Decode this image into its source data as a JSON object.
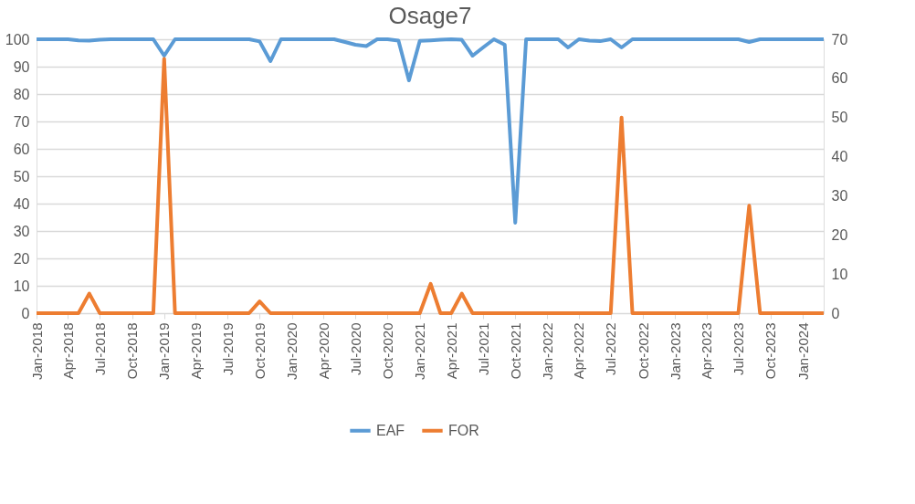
{
  "chart_data": {
    "type": "line",
    "title": "Osage7",
    "x": [
      "2018-01",
      "2018-02",
      "2018-03",
      "2018-04",
      "2018-05",
      "2018-06",
      "2018-07",
      "2018-08",
      "2018-09",
      "2018-10",
      "2018-11",
      "2018-12",
      "2019-01",
      "2019-02",
      "2019-03",
      "2019-04",
      "2019-05",
      "2019-06",
      "2019-07",
      "2019-08",
      "2019-09",
      "2019-10",
      "2019-11",
      "2019-12",
      "2020-01",
      "2020-02",
      "2020-03",
      "2020-04",
      "2020-05",
      "2020-06",
      "2020-07",
      "2020-08",
      "2020-09",
      "2020-10",
      "2020-11",
      "2020-12",
      "2021-01",
      "2021-02",
      "2021-03",
      "2021-04",
      "2021-05",
      "2021-06",
      "2021-07",
      "2021-08",
      "2021-09",
      "2021-10",
      "2021-11",
      "2021-12",
      "2022-01",
      "2022-02",
      "2022-03",
      "2022-04",
      "2022-05",
      "2022-06",
      "2022-07",
      "2022-08",
      "2022-09",
      "2022-10",
      "2022-11",
      "2022-12",
      "2023-01",
      "2023-02",
      "2023-03",
      "2023-04",
      "2023-05",
      "2023-06",
      "2023-07",
      "2023-08",
      "2023-09",
      "2023-10",
      "2023-11",
      "2023-12",
      "2024-01",
      "2024-02",
      "2024-03"
    ],
    "series": [
      {
        "name": "EAF",
        "color": "#5b9bd5",
        "values": [
          100,
          100,
          100,
          100,
          99.6,
          99.5,
          99.8,
          100,
          100,
          100,
          100,
          100,
          94,
          100,
          100,
          100,
          100,
          100,
          100,
          100,
          100,
          99.2,
          92,
          100,
          100,
          100,
          100,
          100,
          100,
          99,
          98,
          97.5,
          100,
          100,
          99.5,
          85,
          99.4,
          99.6,
          99.8,
          100,
          99.8,
          94,
          97,
          100,
          98,
          33,
          100,
          100,
          100,
          100,
          97,
          100,
          99.5,
          99.3,
          100,
          97,
          100,
          100,
          100,
          100,
          100,
          100,
          100,
          100,
          100,
          100,
          100,
          99,
          100,
          100,
          100,
          100,
          100,
          100,
          100
        ]
      },
      {
        "name": "FOR",
        "color": "#ed7d31",
        "axis": "y2",
        "values": [
          0,
          0,
          0,
          0,
          0,
          5,
          0,
          0,
          0,
          0,
          0,
          0,
          65,
          0,
          0,
          0,
          0,
          0,
          0,
          0,
          0,
          3,
          0,
          0,
          0,
          0,
          0,
          0,
          0,
          0,
          0,
          0,
          0,
          0,
          0,
          0,
          0,
          7.5,
          0,
          0,
          5,
          0,
          0,
          0,
          0,
          0,
          0,
          0,
          0,
          0,
          0,
          0,
          0,
          0,
          0,
          50,
          0,
          0,
          0,
          0,
          0,
          0,
          0,
          0,
          0,
          0,
          0,
          27.5,
          0,
          0,
          0,
          0,
          0,
          0,
          0
        ]
      }
    ],
    "xlim": [
      "2018-01",
      "2024-03"
    ],
    "xticks": [
      {
        "value": "2018-01",
        "label": "Jan-2018"
      },
      {
        "value": "2018-04",
        "label": "Apr-2018"
      },
      {
        "value": "2018-07",
        "label": "Jul-2018"
      },
      {
        "value": "2018-10",
        "label": "Oct-2018"
      },
      {
        "value": "2019-01",
        "label": "Jan-2019"
      },
      {
        "value": "2019-04",
        "label": "Apr-2019"
      },
      {
        "value": "2019-07",
        "label": "Jul-2019"
      },
      {
        "value": "2019-10",
        "label": "Oct-2019"
      },
      {
        "value": "2020-01",
        "label": "Jan-2020"
      },
      {
        "value": "2020-04",
        "label": "Apr-2020"
      },
      {
        "value": "2020-07",
        "label": "Jul-2020"
      },
      {
        "value": "2020-10",
        "label": "Oct-2020"
      },
      {
        "value": "2021-01",
        "label": "Jan-2021"
      },
      {
        "value": "2021-04",
        "label": "Apr-2021"
      },
      {
        "value": "2021-07",
        "label": "Jul-2021"
      },
      {
        "value": "2021-10",
        "label": "Oct-2021"
      },
      {
        "value": "2022-01",
        "label": "Jan-2022"
      },
      {
        "value": "2022-04",
        "label": "Apr-2022"
      },
      {
        "value": "2022-07",
        "label": "Jul-2022"
      },
      {
        "value": "2022-10",
        "label": "Oct-2022"
      },
      {
        "value": "2023-01",
        "label": "Jan-2023"
      },
      {
        "value": "2023-04",
        "label": "Apr-2023"
      },
      {
        "value": "2023-07",
        "label": "Jul-2023"
      },
      {
        "value": "2023-10",
        "label": "Oct-2023"
      },
      {
        "value": "2024-01",
        "label": "Jan-2024"
      }
    ],
    "ylim": [
      0,
      100
    ],
    "yticks": [
      0,
      10,
      20,
      30,
      40,
      50,
      60,
      70,
      80,
      90,
      100
    ],
    "y2lim": [
      0,
      70
    ],
    "y2ticks": [
      0,
      10,
      20,
      30,
      40,
      50,
      60,
      70
    ],
    "grid": "y",
    "legend": "bottom",
    "line_style": "solid",
    "marker": "none"
  }
}
